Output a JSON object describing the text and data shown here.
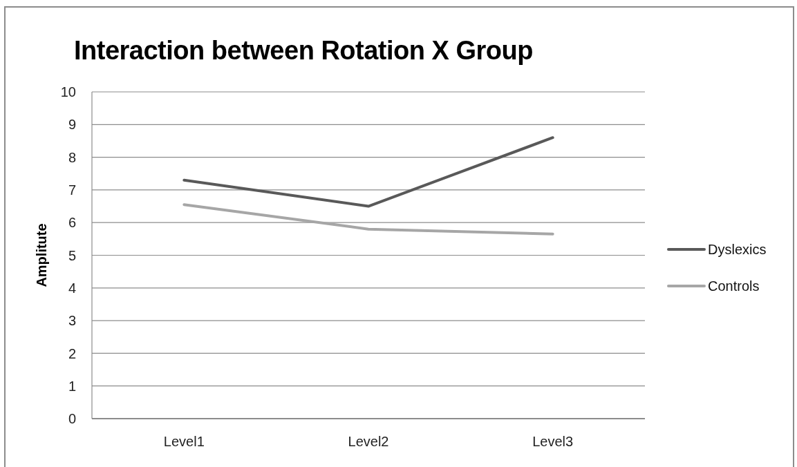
{
  "chart_data": {
    "type": "line",
    "title": "Interaction between Rotation X Group",
    "ylabel": "Amplitute",
    "categories": [
      "Level1",
      "Level2",
      "Level3"
    ],
    "series": [
      {
        "name": "Dyslexics",
        "color": "#595959",
        "values": [
          7.3,
          6.5,
          8.6
        ]
      },
      {
        "name": "Controls",
        "color": "#a6a6a6",
        "values": [
          6.55,
          5.8,
          5.65
        ]
      }
    ],
    "ylim": [
      0,
      10
    ],
    "yticks": [
      0,
      1,
      2,
      3,
      4,
      5,
      6,
      7,
      8,
      9,
      10
    ],
    "grid": "y",
    "legend": "right",
    "marker": "none"
  }
}
